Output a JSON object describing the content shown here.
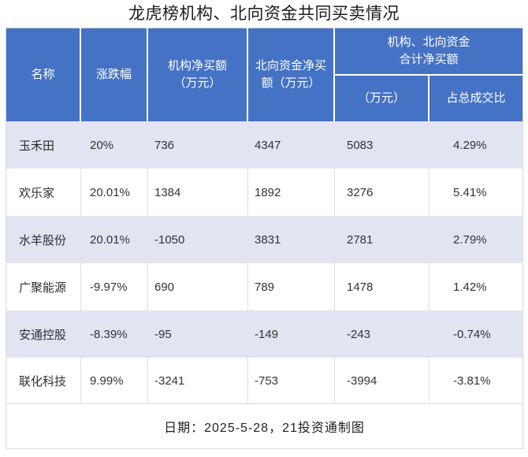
{
  "title": "龙虎榜机构、北向资金共同买卖情况",
  "colors": {
    "header_bg": "#4472c4",
    "header_text": "#ffffff",
    "row_alt_bg": "#e2e4f1",
    "row_bg": "#ffffff",
    "grid_line": "#dcdee9",
    "outer_border": "#d8dae3",
    "body_text": "#333333"
  },
  "columns": {
    "name": "名称",
    "change": "涨跌幅",
    "inst_net": "机构净买额\n（万元）",
    "north_net": "北向资金净买\n额（万元）",
    "group": "机构、北向资金\n合计净买额",
    "group_amount": "（万元）",
    "group_ratio": "占总成交比"
  },
  "rows": [
    {
      "name": "玉禾田",
      "change": "20%",
      "inst": "736",
      "north": "4347",
      "total": "5083",
      "ratio": "4.29%"
    },
    {
      "name": "欢乐家",
      "change": "20.01%",
      "inst": "1384",
      "north": "1892",
      "total": "3276",
      "ratio": "5.41%"
    },
    {
      "name": "水羊股份",
      "change": "20.01%",
      "inst": "-1050",
      "north": "3831",
      "total": "2781",
      "ratio": "2.79%"
    },
    {
      "name": "广聚能源",
      "change": "-9.97%",
      "inst": "690",
      "north": "789",
      "total": "1478",
      "ratio": "1.42%"
    },
    {
      "name": "安通控股",
      "change": "-8.39%",
      "inst": "-95",
      "north": "-149",
      "total": "-243",
      "ratio": "-0.74%"
    },
    {
      "name": "联化科技",
      "change": "9.99%",
      "inst": "-3241",
      "north": "-753",
      "total": "-3994",
      "ratio": "-3.81%"
    }
  ],
  "footer": "日期：2025-5-28，21投资通制图",
  "chart_data": {
    "type": "table",
    "title": "龙虎榜机构、北向资金共同买卖情况",
    "columns": [
      "名称",
      "涨跌幅",
      "机构净买额（万元）",
      "北向资金净买额（万元）",
      "机构、北向资金合计净买额（万元）",
      "机构、北向资金合计净买额占总成交比"
    ],
    "rows": [
      [
        "玉禾田",
        "20%",
        736,
        4347,
        5083,
        "4.29%"
      ],
      [
        "欢乐家",
        "20.01%",
        1384,
        1892,
        3276,
        "5.41%"
      ],
      [
        "水羊股份",
        "20.01%",
        -1050,
        3831,
        2781,
        "2.79%"
      ],
      [
        "广聚能源",
        "-9.97%",
        690,
        789,
        1478,
        "1.42%"
      ],
      [
        "安通控股",
        "-8.39%",
        -95,
        -149,
        -243,
        "-0.74%"
      ],
      [
        "联化科技",
        "9.99%",
        -3241,
        -753,
        -3994,
        "-3.81%"
      ]
    ],
    "note": "日期：2025-5-28，21投资通制图"
  }
}
